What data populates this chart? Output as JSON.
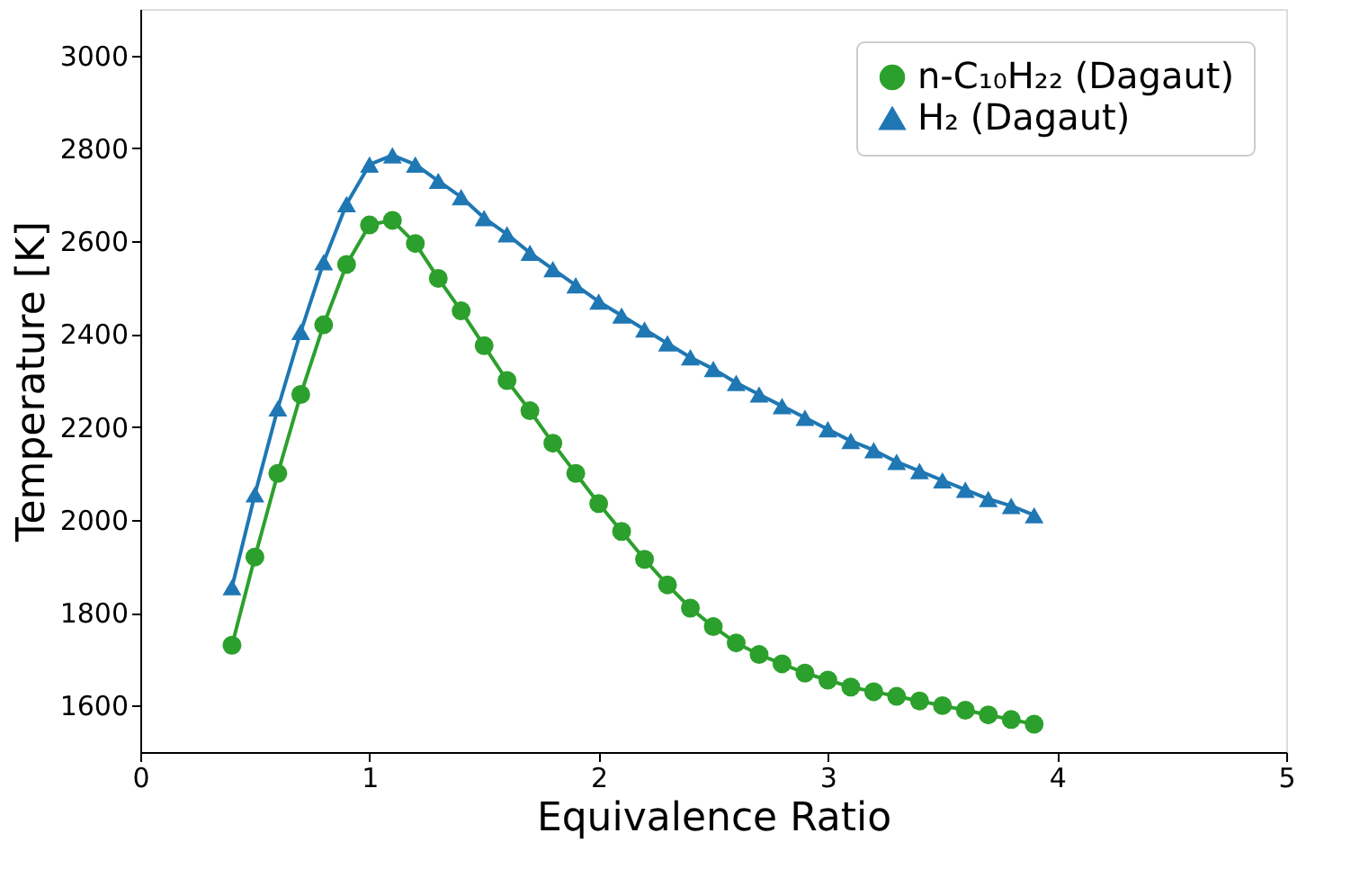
{
  "chart_data": {
    "type": "line",
    "xlabel": "Equivalence Ratio",
    "ylabel": "Temperature [K]",
    "x": [
      0.4,
      0.5,
      0.6,
      0.7,
      0.8,
      0.9,
      1.0,
      1.1,
      1.2,
      1.3,
      1.4,
      1.5,
      1.6,
      1.7,
      1.8,
      1.9,
      2.0,
      2.1,
      2.2,
      2.3,
      2.4,
      2.5,
      2.6,
      2.7,
      2.8,
      2.9,
      3.0,
      3.1,
      3.2,
      3.3,
      3.4,
      3.5,
      3.6,
      3.7,
      3.8,
      3.9
    ],
    "series": [
      {
        "name": "n-C₁₀H₂₂ (Dagaut)",
        "color": "#2ca02c",
        "marker": "circle",
        "values": [
          1730,
          1920,
          2100,
          2270,
          2420,
          2550,
          2635,
          2645,
          2595,
          2520,
          2450,
          2375,
          2300,
          2235,
          2165,
          2100,
          2035,
          1975,
          1915,
          1860,
          1810,
          1770,
          1735,
          1710,
          1690,
          1670,
          1655,
          1640,
          1630,
          1620,
          1610,
          1600,
          1590,
          1580,
          1570,
          1560
        ]
      },
      {
        "name": "H₂ (Dagaut)",
        "color": "#1f77b4",
        "marker": "triangle",
        "values": [
          1855,
          2055,
          2240,
          2405,
          2555,
          2680,
          2765,
          2785,
          2765,
          2730,
          2695,
          2650,
          2615,
          2575,
          2540,
          2505,
          2470,
          2440,
          2410,
          2380,
          2350,
          2325,
          2295,
          2270,
          2245,
          2220,
          2195,
          2170,
          2150,
          2125,
          2105,
          2085,
          2065,
          2045,
          2030,
          2010
        ]
      }
    ],
    "xlim": [
      0,
      5
    ],
    "xticks": [
      0,
      1,
      2,
      3,
      4,
      5
    ],
    "ylim": [
      1500,
      3100
    ],
    "yticks": [
      1600,
      1800,
      2000,
      2200,
      2400,
      2600,
      2800,
      3000
    ],
    "grid": false,
    "legend": "top right",
    "line_style": "solid"
  }
}
